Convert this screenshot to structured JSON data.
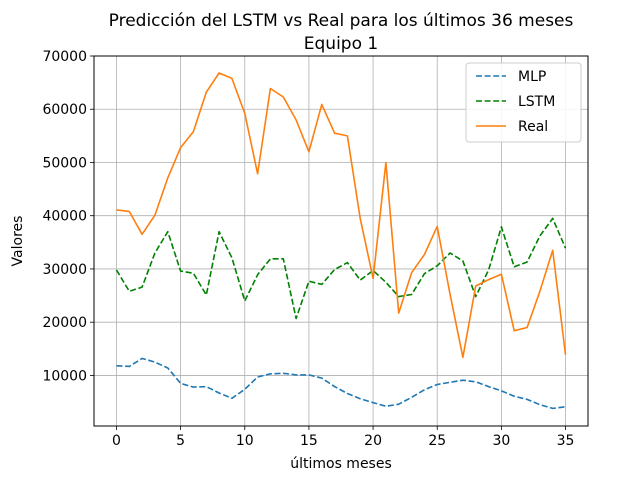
{
  "chart_data": {
    "type": "line",
    "title": "Predicción del LSTM vs Real para los últimos 36 meses",
    "subtitle": "Equipo 1",
    "xlabel": "últimos meses",
    "ylabel": "Valores",
    "xlim": [
      -1.75,
      36.75
    ],
    "ylim": [
      500,
      70000
    ],
    "xticks": [
      0,
      5,
      10,
      15,
      20,
      25,
      30,
      35
    ],
    "xtick_labels": [
      "0",
      "5",
      "10",
      "15",
      "20",
      "25",
      "30",
      "35"
    ],
    "yticks": [
      10000,
      20000,
      30000,
      40000,
      50000,
      60000,
      70000
    ],
    "ytick_labels": [
      "10000",
      "20000",
      "30000",
      "40000",
      "50000",
      "60000",
      "70000"
    ],
    "grid": true,
    "legend_position": "top-right",
    "x": [
      0,
      1,
      2,
      3,
      4,
      5,
      6,
      7,
      8,
      9,
      10,
      11,
      12,
      13,
      14,
      15,
      16,
      17,
      18,
      19,
      20,
      21,
      22,
      23,
      24,
      25,
      26,
      27,
      28,
      29,
      30,
      31,
      32,
      33,
      34,
      35
    ],
    "series": [
      {
        "name": "MLP",
        "color": "#1f77b4",
        "style": "dashed",
        "values": [
          11800,
          11700,
          13200,
          12500,
          11400,
          8500,
          7800,
          7900,
          6700,
          5700,
          7400,
          9700,
          10300,
          10400,
          10100,
          10100,
          9500,
          7900,
          6600,
          5600,
          4900,
          4200,
          4600,
          5900,
          7300,
          8300,
          8700,
          9100,
          8800,
          7900,
          7100,
          6100,
          5500,
          4500,
          3800,
          4100
        ]
      },
      {
        "name": "LSTM",
        "color": "#008000",
        "style": "dashed",
        "values": [
          29800,
          25800,
          26600,
          33000,
          37000,
          29600,
          29200,
          25100,
          37000,
          32100,
          24000,
          28900,
          31900,
          31900,
          20700,
          27700,
          27100,
          29900,
          31200,
          27900,
          29700,
          27500,
          24800,
          25200,
          29100,
          30600,
          33000,
          31500,
          24800,
          29800,
          37900,
          30400,
          31300,
          36200,
          39500,
          33900
        ]
      },
      {
        "name": "Real",
        "color": "#ff7f0e",
        "style": "solid",
        "values": [
          41100,
          40800,
          36500,
          40100,
          47100,
          52800,
          55800,
          63200,
          66800,
          65800,
          59200,
          47900,
          63900,
          62300,
          58000,
          52000,
          60900,
          55500,
          55000,
          39500,
          28200,
          50000,
          21700,
          29300,
          32700,
          38000,
          25200,
          13400,
          26800,
          28000,
          29000,
          18400,
          19000,
          25800,
          33500,
          13900
        ]
      }
    ]
  }
}
